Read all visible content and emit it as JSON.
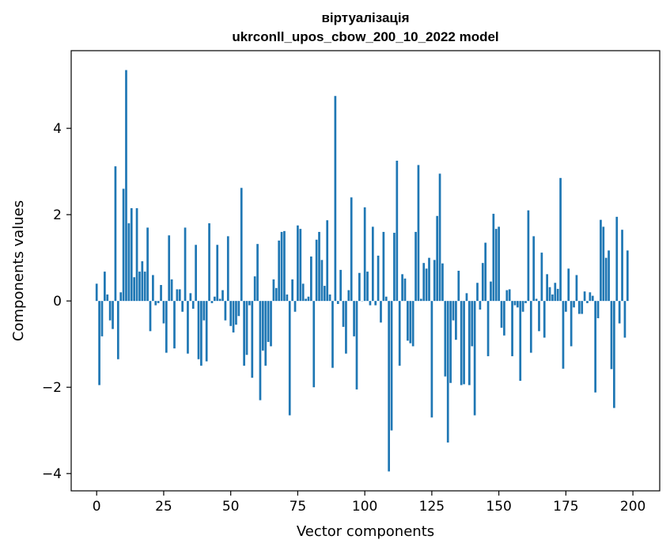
{
  "chart_data": {
    "type": "bar",
    "title": "віртуалізація",
    "subtitle": "ukrconll_upos_cbow_200_10_2022 model",
    "xlabel": "Vector components",
    "ylabel": "Components values",
    "xlim": [
      -9.5,
      210
    ],
    "ylim": [
      -4.4,
      5.8
    ],
    "x_ticks": [
      0,
      25,
      50,
      75,
      100,
      125,
      150,
      175,
      200
    ],
    "y_ticks": [
      -4,
      -2,
      0,
      2,
      4
    ],
    "x_tick_labels": [
      "0",
      "25",
      "50",
      "75",
      "100",
      "125",
      "150",
      "175",
      "200"
    ],
    "y_tick_labels": [
      "−4",
      "−2",
      "0",
      "2",
      "4"
    ],
    "grid": false,
    "bar_color": "#1f77b4",
    "values": [
      0.4,
      -1.95,
      -0.82,
      0.68,
      0.15,
      -0.45,
      -0.65,
      3.12,
      -1.35,
      0.2,
      2.6,
      5.35,
      1.8,
      2.15,
      0.55,
      2.15,
      0.68,
      0.92,
      0.68,
      1.7,
      -0.7,
      0.6,
      -0.1,
      -0.05,
      0.37,
      -0.52,
      -1.2,
      1.52,
      0.5,
      -1.1,
      0.27,
      0.27,
      -0.25,
      1.7,
      -1.22,
      0.18,
      -0.18,
      1.3,
      -1.35,
      -1.5,
      -0.45,
      -1.4,
      1.8,
      -0.05,
      0.1,
      1.3,
      0.05,
      0.25,
      -0.45,
      1.5,
      -0.58,
      -0.73,
      -0.55,
      -0.35,
      2.62,
      -1.5,
      -1.25,
      -0.1,
      -1.78,
      0.57,
      1.32,
      -2.3,
      -1.15,
      -1.5,
      -0.95,
      -1.05,
      0.5,
      0.3,
      1.4,
      1.6,
      1.62,
      0.15,
      -2.65,
      0.5,
      -0.25,
      1.75,
      1.67,
      0.4,
      0.05,
      0.1,
      1.03,
      -2.0,
      1.42,
      1.6,
      0.95,
      0.35,
      1.87,
      0.15,
      -1.55,
      4.75,
      -0.07,
      0.72,
      -0.6,
      -1.22,
      0.25,
      2.4,
      -0.82,
      -2.05,
      0.65,
      0.0,
      2.17,
      0.68,
      -0.1,
      1.72,
      -0.1,
      1.05,
      -0.5,
      1.6,
      0.1,
      -3.95,
      -3.0,
      1.58,
      3.25,
      -1.5,
      0.62,
      0.52,
      -0.92,
      -0.98,
      -1.05,
      1.6,
      3.15,
      0.05,
      0.88,
      0.75,
      1.0,
      -2.7,
      0.95,
      1.97,
      2.95,
      0.87,
      -1.75,
      -3.28,
      -1.9,
      -0.45,
      -0.9,
      0.7,
      -1.95,
      -1.93,
      0.18,
      -1.95,
      -1.05,
      -2.65,
      0.42,
      -0.2,
      0.88,
      1.35,
      -1.28,
      0.45,
      2.02,
      1.67,
      1.72,
      -0.62,
      -0.8,
      0.25,
      0.27,
      -1.28,
      -0.1,
      -0.15,
      -1.85,
      -0.25,
      -0.05,
      2.1,
      -1.2,
      1.5,
      0.05,
      -0.7,
      1.12,
      -0.85,
      0.62,
      0.32,
      0.15,
      0.42,
      0.28,
      2.85,
      -1.57,
      -0.25,
      0.75,
      -1.05,
      -0.15,
      0.6,
      -0.3,
      -0.3,
      0.22,
      -0.05,
      0.2,
      0.12,
      -2.12,
      -0.4,
      1.88,
      1.72,
      1.0,
      1.17,
      -1.58,
      -2.48,
      1.95,
      -0.52,
      1.65,
      -0.85,
      1.17
    ]
  }
}
